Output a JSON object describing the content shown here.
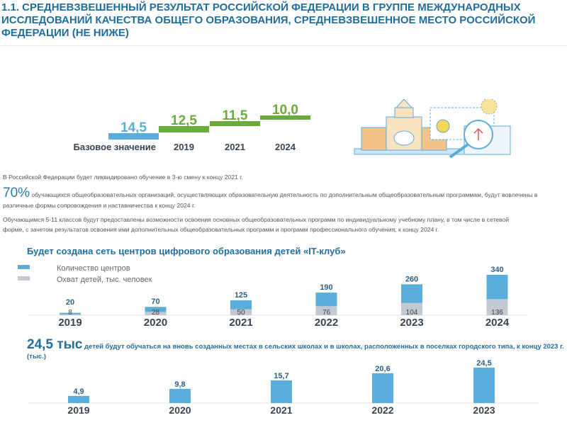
{
  "header": {
    "title": "1.1. СРЕДНЕВЗВЕШЕННЫЙ РЕЗУЛЬТАТ РОССИЙСКОЙ ФЕДЕРАЦИИ В ГРУППЕ МЕЖДУНАРОДНЫХ ИССЛЕДОВАНИЙ КАЧЕСТВА ОБЩЕГО ОБРАЗОВАНИЯ, СРЕДНЕВЗВЕШЕННОЕ МЕСТО РОССИЙСКОЙ ФЕДЕРАЦИИ (НЕ НИЖЕ)"
  },
  "colors": {
    "blue": "#5aaedb",
    "green": "#6aab3e",
    "gray": "#c3c9d3",
    "text_blue": "#1f6e9e",
    "label_dark": "#3a4550"
  },
  "illustration": {
    "icon": "university-magnifier-illustration"
  },
  "texts": {
    "p1": "В Российской Федерации будет ликвидировано обучение в 3-ю смену к концу 2021 г.",
    "p2_big": "70%",
    "p2": "обучающихся общеобразовательных организаций, осуществляющих образовательную деятельность по дополнительным общеобразовательным программам, будут вовлечены в различные формы сопровождения и наставничества к концу 2024 г.",
    "p3": "Обучающимся 5-11 классов будут предоставлены возможности освоения основных общеобразовательных программ по индивидуальному учебному плану, в том числе в сетевой форме, с зачетом результатов освоения ими дополнительных общеобразовательных программ и программ профессионального обучения, к концу 2024 г."
  },
  "chart_data": [
    {
      "type": "bar",
      "categories": [
        "Базовое значение",
        "2019",
        "2021",
        "2024"
      ],
      "values": [
        14.5,
        12.5,
        11.5,
        10.0
      ],
      "value_labels": [
        "14,5",
        "12,5",
        "11,5",
        "10,0"
      ],
      "colors": [
        "#5aaedb",
        "#6aab3e",
        "#6aab3e",
        "#6aab3e"
      ]
    },
    {
      "type": "bar",
      "title": "Будет создана сеть центров цифрового образования детей «IT-клуб»",
      "categories": [
        "2019",
        "2020",
        "2021",
        "2022",
        "2023",
        "2024"
      ],
      "series": [
        {
          "name": "Количество центров",
          "values": [
            20,
            70,
            125,
            190,
            260,
            340
          ],
          "color": "#5aaedb"
        },
        {
          "name": "Охват детей, тыс. человек",
          "values": [
            8,
            28,
            50,
            76,
            104,
            136
          ],
          "color": "#c3c9d3"
        }
      ],
      "legend": "top-left"
    },
    {
      "type": "bar",
      "title_big": "24,5 тыс",
      "title": "детей будут обучаться на вновь созданных местах в сельских школах и в школах, расположенных в поселках городского типа, к концу 2023 г. (тыс.)",
      "categories": [
        "2019",
        "2020",
        "2021",
        "2022",
        "2023"
      ],
      "values": [
        4.9,
        9.8,
        15.7,
        20.6,
        24.5
      ],
      "value_labels": [
        "4,9",
        "9,8",
        "15,7",
        "20,6",
        "24,5"
      ],
      "color": "#5aaedb"
    }
  ]
}
